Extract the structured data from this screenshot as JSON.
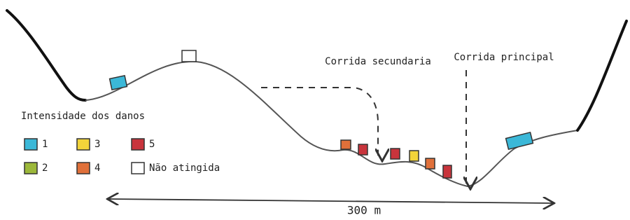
{
  "labels": {
    "secondary_flow": "Corrida secundaria",
    "main_flow": "Corrida principal",
    "distance": "300 m"
  },
  "legend": {
    "title": "Intensidade dos danos",
    "items": [
      {
        "label": "1",
        "color": "#3bb8d8"
      },
      {
        "label": "2",
        "color": "#9cb83a"
      },
      {
        "label": "3",
        "color": "#f2d43a"
      },
      {
        "label": "4",
        "color": "#e0703a"
      },
      {
        "label": "5",
        "color": "#c8343c"
      },
      {
        "label": "Não atingida",
        "color": "#ffffff"
      }
    ]
  }
}
